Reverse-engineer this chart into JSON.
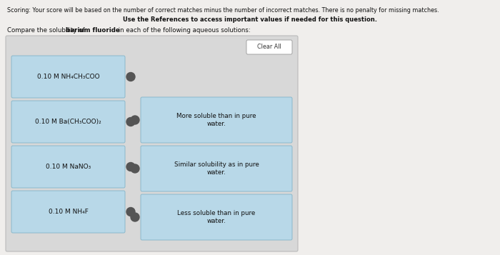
{
  "scoring_text": "Scoring: Your score will be based on the number of correct matches minus the number of incorrect matches. There is no penalty for missing matches.",
  "reference_text": "Use the References to access important values if needed for this question.",
  "compare_text_normal": "Compare the solubility of ",
  "compare_text_bold": "barium fluoride",
  "compare_text_end": " in each of the following aqueous solutions:",
  "left_items": [
    "0.10 M NH₄CH₃COO",
    "0.10 M Ba(CH₃COO)₂",
    "0.10 M NaNO₃",
    "0.10 M NH₄F"
  ],
  "right_items": [
    "More soluble than in pure\nwater.",
    "Similar solubility as in pure\nwater.",
    "Less soluble than in pure\nwater."
  ],
  "clear_all_text": "Clear All",
  "page_bg": "#f0eeec",
  "panel_bg": "#d8d8d8",
  "box_bg_left": "#b8d8e8",
  "box_bg_right": "#b8d8e8",
  "box_border": "#8ab8cc",
  "dot_color": "#555555",
  "clear_btn_bg": "#ffffff",
  "clear_btn_border": "#999999",
  "text_color": "#222222"
}
